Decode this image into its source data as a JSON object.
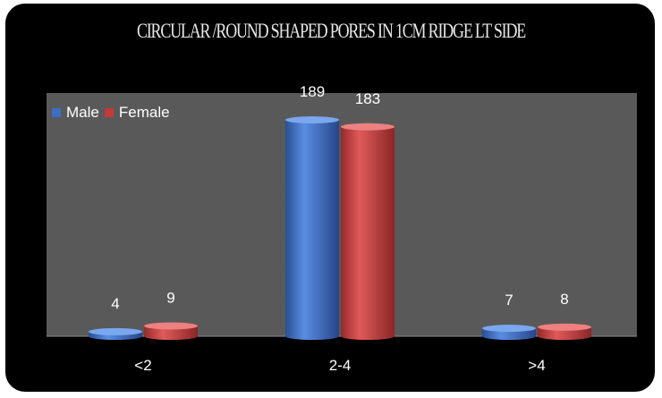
{
  "chart_data": {
    "type": "bar",
    "title": "CIRCULAR /ROUND  SHAPED PORES IN 1CM RIDGE LT SIDE",
    "categories": [
      "<2",
      "2-4",
      ">4"
    ],
    "series": [
      {
        "name": "Male",
        "values": [
          4,
          189,
          7
        ],
        "color": "#3a6fc4"
      },
      {
        "name": "Female",
        "values": [
          9,
          183,
          8
        ],
        "color": "#c43a3a"
      }
    ],
    "ylim": [
      0,
      200
    ],
    "grid": false,
    "legend": "top-left"
  },
  "colors": {
    "background": "#000000",
    "plot_area": "#595959",
    "text": "#ffffff"
  }
}
